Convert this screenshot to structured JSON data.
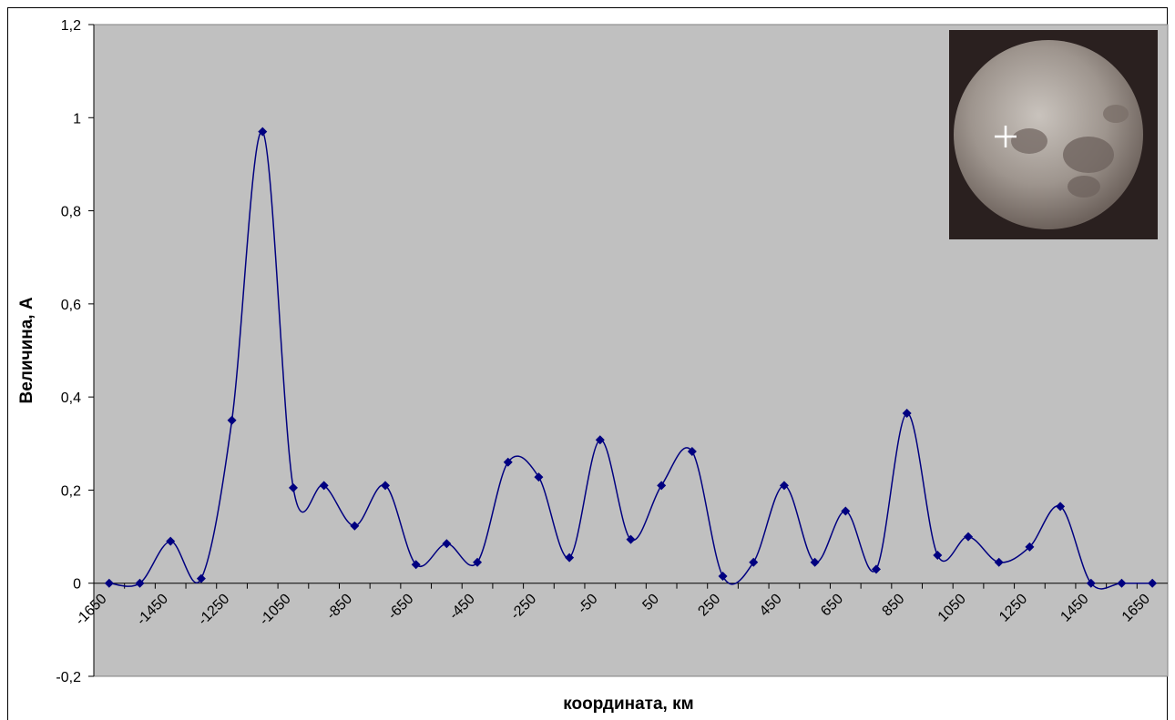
{
  "chart_data": {
    "type": "line",
    "y_label": "Величина, А",
    "x_label": "координата, км",
    "categories": [
      "-1650",
      null,
      "-1450",
      null,
      "-1250",
      null,
      "-1050",
      null,
      "-850",
      null,
      "-650",
      null,
      "-450",
      null,
      "-250",
      null,
      "-50",
      null,
      "50",
      null,
      "250",
      null,
      "450",
      null,
      "650",
      null,
      "850",
      null,
      "1050",
      null,
      "1250",
      null,
      "1450",
      null,
      "1650"
    ],
    "values": [
      0,
      0,
      0.09,
      0.01,
      0.35,
      0.97,
      0.205,
      0.21,
      0.123,
      0.21,
      0.04,
      0.085,
      0.045,
      0.26,
      0.228,
      0.055,
      0.308,
      0.094,
      0.21,
      0.283,
      0.015,
      0.045,
      0.21,
      0.045,
      0.155,
      0.03,
      0.365,
      0.06,
      0.1,
      0.045,
      0.078,
      0.165,
      0,
      0,
      0
    ],
    "color": "#000080",
    "smooth": true,
    "ylim": [
      -0.2,
      1.2
    ],
    "yticks": [
      {
        "value": -0.2,
        "label": "-0,2"
      },
      0,
      {
        "value": 0.2,
        "label": "0,2"
      },
      {
        "value": 0.4,
        "label": "0,4"
      },
      {
        "value": 0.6,
        "label": "0,6"
      },
      {
        "value": 0.8,
        "label": "0,8"
      },
      1,
      {
        "value": 1.2,
        "label": "1,2"
      }
    ],
    "grid": false,
    "plot_background": "#c0c0c0"
  }
}
